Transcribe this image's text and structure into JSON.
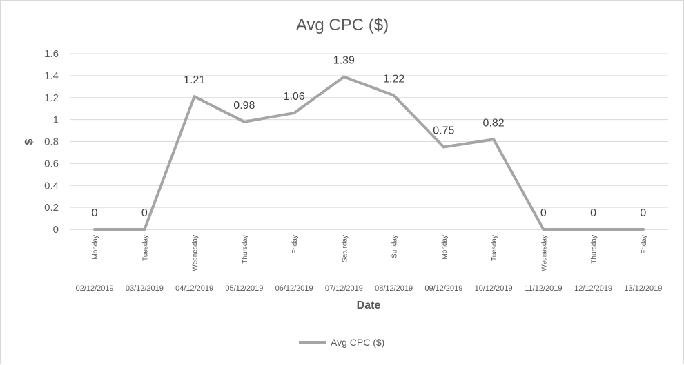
{
  "chart_data": {
    "type": "line",
    "title": "Avg CPC ($)",
    "xlabel": "Date",
    "ylabel": "$",
    "ylim": [
      0,
      1.6
    ],
    "yticks": [
      "0",
      "0.2",
      "0.4",
      "0.6",
      "0.8",
      "1",
      "1.2",
      "1.4",
      "1.6"
    ],
    "grid": true,
    "legend_position": "bottom",
    "days": [
      "Monday",
      "Tuesday",
      "Wednesday",
      "Thursday",
      "Friday",
      "Saturday",
      "Sunday",
      "Monday",
      "Tuesday",
      "Wednesday",
      "Thursday",
      "Friday"
    ],
    "categories": [
      "02/12/2019",
      "03/12/2019",
      "04/12/2019",
      "05/12/2019",
      "06/12/2019",
      "07/12/2019",
      "08/12/2019",
      "09/12/2019",
      "10/12/2019",
      "11/12/2019",
      "12/12/2019",
      "13/12/2019"
    ],
    "series": [
      {
        "name": "Avg CPC ($)",
        "color": "#a5a5a5",
        "values": [
          0,
          0,
          1.21,
          0.98,
          1.06,
          1.39,
          1.22,
          0.75,
          0.82,
          0,
          0,
          0
        ],
        "labels": [
          "0",
          "0",
          "1.21",
          "0.98",
          "1.06",
          "1.39",
          "1.22",
          "0.75",
          "0.82",
          "0",
          "0",
          "0"
        ]
      }
    ]
  }
}
